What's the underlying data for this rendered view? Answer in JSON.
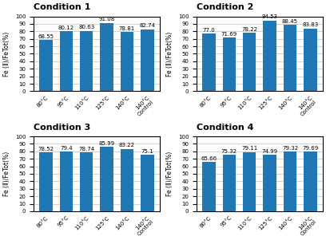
{
  "chart_data": [
    {
      "type": "bar",
      "title": "Condition 1",
      "categories": [
        "80°C",
        "95°C",
        "110°C",
        "125°C",
        "140°C",
        "140°C\nControl"
      ],
      "values": [
        68.55,
        80.12,
        80.63,
        91.08,
        78.81,
        82.74
      ],
      "ylabel": "Fe (Ⅱ)/FeTot(%)",
      "ylim": [
        0,
        100
      ],
      "yticks": [
        0,
        10,
        20,
        30,
        40,
        50,
        60,
        70,
        80,
        90,
        100
      ],
      "grid": true,
      "data_labels": true
    },
    {
      "type": "bar",
      "title": "Condition 2",
      "categories": [
        "80°C",
        "95°C",
        "110°C",
        "125°C",
        "140°C",
        "140°C\nControl"
      ],
      "values": [
        77.0,
        71.69,
        78.22,
        94.53,
        88.45,
        83.83
      ],
      "ylabel": "Fe (Ⅱ)/FeTot(%)",
      "ylim": [
        0,
        100
      ],
      "yticks": [
        0,
        10,
        20,
        30,
        40,
        50,
        60,
        70,
        80,
        90,
        100
      ],
      "grid": true,
      "data_labels": true
    },
    {
      "type": "bar",
      "title": "Condition 3",
      "categories": [
        "80°C",
        "95°C",
        "110°C",
        "125°C",
        "140°C",
        "140°C\nControl"
      ],
      "values": [
        78.52,
        79.4,
        78.74,
        85.99,
        83.22,
        75.1
      ],
      "ylabel": "Fe (Ⅱ)/FeTot(%)",
      "ylim": [
        0,
        100
      ],
      "yticks": [
        0,
        10,
        20,
        30,
        40,
        50,
        60,
        70,
        80,
        90,
        100
      ],
      "grid": true,
      "data_labels": true
    },
    {
      "type": "bar",
      "title": "Condition 4",
      "categories": [
        "80°C",
        "95°C",
        "110°C",
        "125°C",
        "140°C",
        "140°C\nControl"
      ],
      "values": [
        65.66,
        75.32,
        79.11,
        74.99,
        79.32,
        79.69
      ],
      "ylabel": "Fe (Ⅱ)/FeTot(%)",
      "ylim": [
        0,
        100
      ],
      "yticks": [
        0,
        10,
        20,
        30,
        40,
        50,
        60,
        70,
        80,
        90,
        100
      ],
      "grid": true,
      "data_labels": true
    }
  ]
}
